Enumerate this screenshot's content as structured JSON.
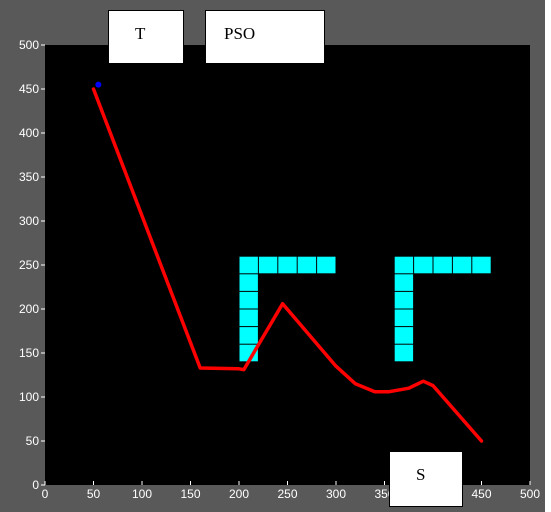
{
  "callouts": {
    "target": "T",
    "method": "PSO",
    "start": "S"
  },
  "colors": {
    "frame": "#595959",
    "axes_background": "#000000",
    "axis_text": "#ffffff",
    "path": "#ff0000",
    "obstacles": "#00ffff",
    "target_marker": "#0000ff"
  },
  "chart_data": {
    "type": "line",
    "title": "",
    "xlabel": "",
    "ylabel": "",
    "xlim": [
      0,
      500
    ],
    "ylim": [
      0,
      500
    ],
    "xticks": [
      0,
      50,
      100,
      150,
      200,
      250,
      300,
      350,
      400,
      450,
      500
    ],
    "yticks": [
      0,
      50,
      100,
      150,
      200,
      250,
      300,
      350,
      400,
      450,
      500
    ],
    "grid": false,
    "series": [
      {
        "color": "#ff0000",
        "x": [
          450,
          400,
          390,
          375,
          355,
          340,
          320,
          300,
          245,
          205,
          200,
          160,
          50
        ],
        "y": [
          50,
          113,
          118,
          110,
          106,
          106,
          115,
          135,
          206,
          131,
          132,
          133,
          450
        ]
      }
    ],
    "target_point": {
      "x": 55,
      "y": 455,
      "color": "#0000ff"
    },
    "obstacle_cells": {
      "color": "#00ffff",
      "cell_size": 20,
      "cells": [
        [
          200,
          260
        ],
        [
          220,
          260
        ],
        [
          240,
          260
        ],
        [
          260,
          260
        ],
        [
          280,
          260
        ],
        [
          200,
          240
        ],
        [
          200,
          220
        ],
        [
          200,
          200
        ],
        [
          200,
          180
        ],
        [
          200,
          160
        ],
        [
          360,
          260
        ],
        [
          380,
          260
        ],
        [
          400,
          260
        ],
        [
          420,
          260
        ],
        [
          440,
          260
        ],
        [
          360,
          240
        ],
        [
          360,
          220
        ],
        [
          360,
          200
        ],
        [
          360,
          180
        ],
        [
          360,
          160
        ]
      ]
    }
  }
}
